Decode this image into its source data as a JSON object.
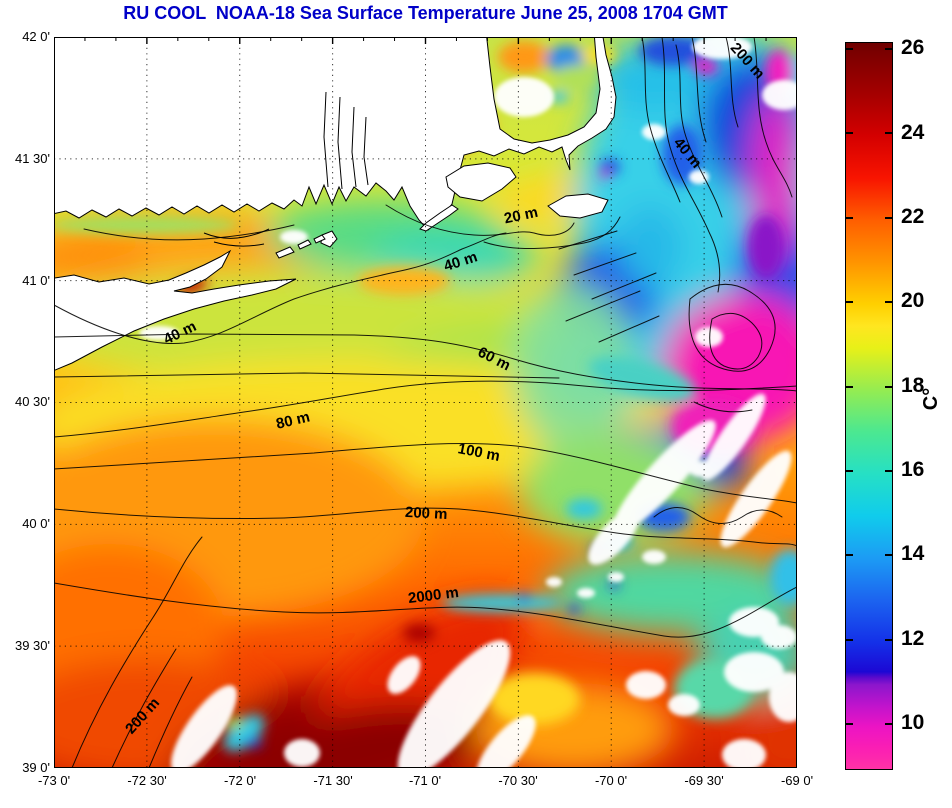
{
  "title": "RU COOL  NOAA-18 Sea Surface Temperature June 25, 2008 1704 GMT",
  "title_color": "#0000C8",
  "map": {
    "lat_labels": [
      "42 0'",
      "41 30'",
      "41 0'",
      "40 30'",
      "40 0'",
      "39 30'",
      "39 0'"
    ],
    "lon_labels": [
      "-73 0'",
      "-72 30'",
      "-72 0'",
      "-71 30'",
      "-71 0'",
      "-70 30'",
      "-70 0'",
      "-69 30'",
      "-69 0'"
    ],
    "contour_labels": [
      {
        "text": "20 m"
      },
      {
        "text": "40 m"
      },
      {
        "text": "40 m"
      },
      {
        "text": "40 m"
      },
      {
        "text": "60 m"
      },
      {
        "text": "80 m"
      },
      {
        "text": "100 m"
      },
      {
        "text": "200 m"
      },
      {
        "text": "2000 m"
      },
      {
        "text": "200 m"
      },
      {
        "text": "200 m"
      },
      {
        "text": "200 m"
      }
    ]
  },
  "colorbar": {
    "tick_labels": [
      "26",
      "24",
      "22",
      "20",
      "18",
      "16",
      "14",
      "12",
      "10"
    ],
    "unit_label": "C°",
    "stops": [
      [
        0,
        "#6E0000"
      ],
      [
        1.2,
        "#7A0000"
      ],
      [
        7,
        "#A40000"
      ],
      [
        12.8,
        "#D40000"
      ],
      [
        18.6,
        "#F81400"
      ],
      [
        24.4,
        "#FF5E00"
      ],
      [
        30.2,
        "#FF9400"
      ],
      [
        36,
        "#FFD000"
      ],
      [
        39,
        "#FFE620"
      ],
      [
        42,
        "#E8F018"
      ],
      [
        47.7,
        "#96EC50"
      ],
      [
        53.5,
        "#4CE890"
      ],
      [
        59.3,
        "#26E0C4"
      ],
      [
        65.1,
        "#10CCEC"
      ],
      [
        70.9,
        "#1C9CF4"
      ],
      [
        76.7,
        "#1C64F0"
      ],
      [
        82.6,
        "#1430E8"
      ],
      [
        86.6,
        "#1C08D4"
      ],
      [
        87.4,
        "#5A0ACC"
      ],
      [
        88.4,
        "#8C16CC"
      ],
      [
        91.3,
        "#C014CC"
      ],
      [
        94.2,
        "#EC14C4"
      ],
      [
        97.1,
        "#FA1EB4"
      ],
      [
        100,
        "#FF32A6"
      ]
    ]
  }
}
